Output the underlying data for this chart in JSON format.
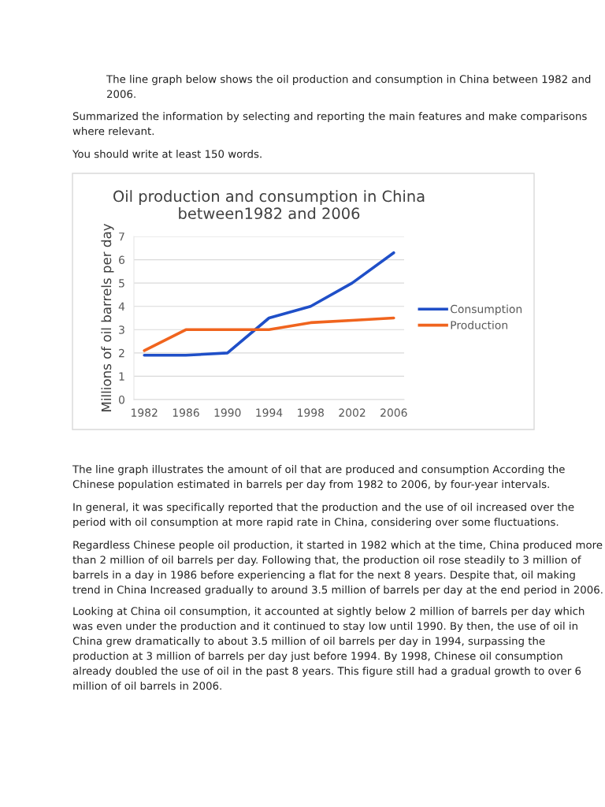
{
  "chart_data": {
    "type": "line",
    "title": "Oil production and consumption in China\nbetween1982 and 2006",
    "ylabel": "Millions of oil barrels per day",
    "categories": [
      "1982",
      "1986",
      "1990",
      "1994",
      "1998",
      "2002",
      "2006"
    ],
    "series": [
      {
        "name": "Consumption",
        "color": "#1f4fc8",
        "values": [
          1.9,
          1.9,
          2.0,
          3.5,
          4.0,
          5.0,
          6.3
        ]
      },
      {
        "name": "Production",
        "color": "#f0641e",
        "values": [
          2.1,
          3.0,
          3.0,
          3.0,
          3.3,
          3.4,
          3.5
        ]
      }
    ],
    "ylim": [
      0,
      7
    ],
    "yticks": [
      0,
      1,
      2,
      3,
      4,
      5,
      6,
      7
    ],
    "grid": "y",
    "legend": "right",
    "marker": "none",
    "line_style": "solid",
    "annotations": [
      "The line graph below shows the oil production and consumption in China between 1982 and 2006.",
      "Summarized the information by selecting and reporting the main features and make comparisons where relevant.",
      "You should write at least 150 words.",
      "The line graph illustrates the amount of oil that are produced and consumption According the Chinese population estimated in barrels per day from 1982 to 2006, by four-year intervals.",
      "In general, it was specifically reported that the production and the use of oil increased over the period with oil consumption at more rapid rate in China, considering over some fluctuations.",
      "Regardless Chinese people oil production, it started in 1982 which at the time, China produced more than 2 million of oil barrels per day. Following that, the production oil rose steadily to 3 million of barrels in a day in 1986 before experiencing a flat for the next 8 years. Despite that, oil making trend in China Increased gradually to around 3.5 million of barrels per day at the end period in 2006.",
      "Looking at China oil consumption, it accounted at sightly below 2 million of barrels per day which was even under the production and it continued to stay low until 1990. By then, the use of oil in China grew dramatically to about 3.5 million of oil barrels per day in 1994, surpassing the production at 3 million of barrels per day just before 1994. By 1998, Chinese oil consumption already doubled the use of oil in the past 8 years. This figure still had a gradual growth to over 6 million of oil barrels in 2006."
    ]
  }
}
